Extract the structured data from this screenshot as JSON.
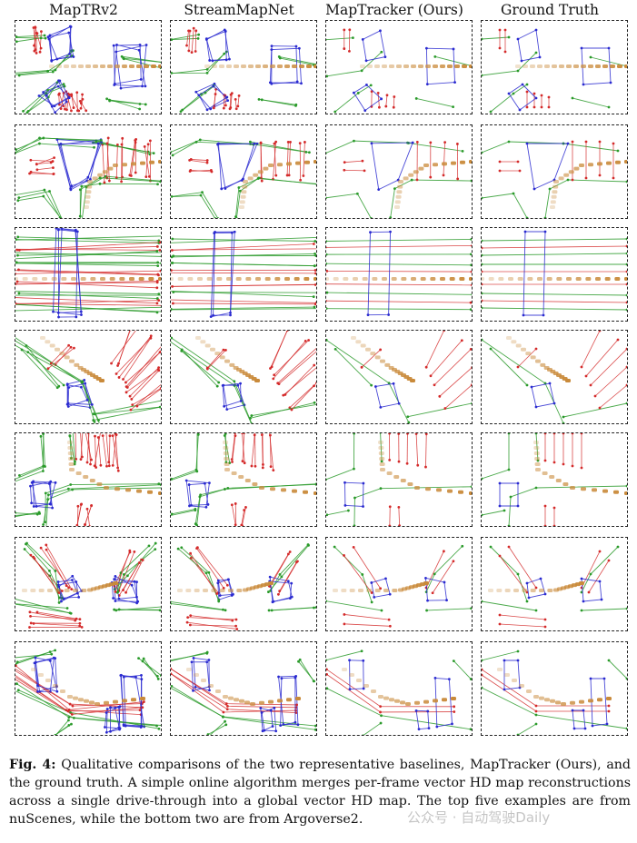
{
  "columns": [
    "MapTRv2",
    "StreamMapNet",
    "MapTracker (Ours)",
    "Ground Truth"
  ],
  "caption": {
    "label": "Fig. 4:",
    "text": "Qualitative comparisons of the two representative baselines, MapTracker (Ours), and the ground truth. A simple online algorithm merges per-frame vector HD map reconstructions across a single drive-through into a global vector HD map. The top five examples are from nuScenes, while the bottom two are from Argoverse2."
  },
  "watermark": "公众号 · 自动驾驶Daily",
  "legend_colors": {
    "divider": "#2a9a2a",
    "pedestrian_crossing": "#2a2ad0",
    "boundary": "#d42a2a",
    "trajectory": "#c98a3a"
  }
}
